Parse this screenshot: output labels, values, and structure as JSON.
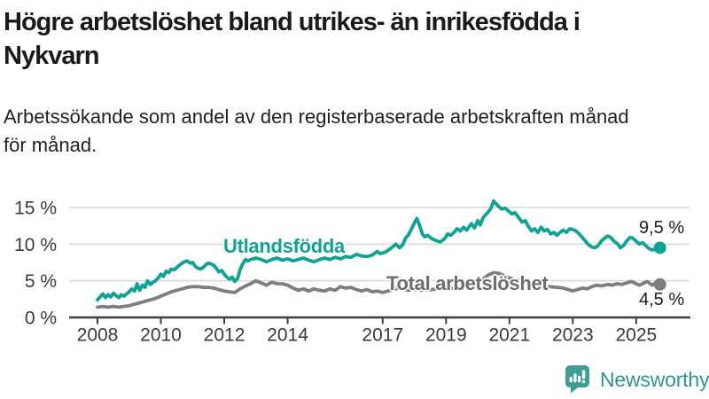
{
  "header": {
    "title": "Högre arbetslöshet bland utrikes- än inrikesfödda i\nNykvarn",
    "subtitle": "Arbetssökande som andel av den registerbaserade arbetskraften månad\nför månad."
  },
  "theme": {
    "background": "#ffffff",
    "accent_teal": "#0ea394",
    "line_gray": "#7e7e82",
    "label_gray": "#6c6c71",
    "title_color": "#1a1a1a",
    "subtitle_color": "#212121",
    "tick_color": "#3a3a3a",
    "grid_color": "#d8d8d8",
    "axis_color": "#3f3f3f",
    "value_label_color": "#1f1f1f",
    "logo_teal": "#3f9d96",
    "wordmark_teal": "#2f968f"
  },
  "chart_data": {
    "type": "line",
    "title": "Högre arbetslöshet bland utrikes- än inrikesfödda i Nykvarn",
    "subtitle": "Arbetssökande som andel av den registerbaserade arbetskraften månad för månad.",
    "unit": "%",
    "grid": true,
    "legend_position": "inline-labels",
    "x_range": [
      2007.9,
      2026.0
    ],
    "ylim": [
      0,
      16.5
    ],
    "x_axis": {
      "ticks": [
        {
          "year": 2008,
          "label": "2008"
        },
        {
          "year": 2010,
          "label": "2010"
        },
        {
          "year": 2012,
          "label": "2012"
        },
        {
          "year": 2014,
          "label": "2014"
        },
        {
          "year": 2017,
          "label": "2017"
        },
        {
          "year": 2019,
          "label": "2019"
        },
        {
          "year": 2021,
          "label": "2021"
        },
        {
          "year": 2023,
          "label": "2023"
        },
        {
          "year": 2025,
          "label": "2025"
        }
      ]
    },
    "y_axis": {
      "ticks": [
        {
          "value": 0,
          "label": "0 %"
        },
        {
          "value": 5,
          "label": "5 %"
        },
        {
          "value": 10,
          "label": "10 %"
        },
        {
          "value": 15,
          "label": "15 %"
        }
      ]
    },
    "series": [
      {
        "name": "Utlandsfödda",
        "color": "#0ea394",
        "end_value": 9.5,
        "end_label": "9,5 %",
        "points": [
          [
            2008,
            2.4
          ],
          [
            2008.08,
            2.8
          ],
          [
            2008.17,
            3.2
          ],
          [
            2008.25,
            2.7
          ],
          [
            2008.33,
            3.1
          ],
          [
            2008.42,
            2.8
          ],
          [
            2008.5,
            3.3
          ],
          [
            2008.58,
            3
          ],
          [
            2008.67,
            2.7
          ],
          [
            2008.75,
            3.1
          ],
          [
            2008.83,
            2.9
          ],
          [
            2008.92,
            3.2
          ],
          [
            2009,
            3.5
          ],
          [
            2009.08,
            3.9
          ],
          [
            2009.17,
            3.6
          ],
          [
            2009.25,
            4.6
          ],
          [
            2009.33,
            3.7
          ],
          [
            2009.42,
            4.4
          ],
          [
            2009.5,
            4.1
          ],
          [
            2009.58,
            5
          ],
          [
            2009.67,
            4.5
          ],
          [
            2009.75,
            4.8
          ],
          [
            2009.83,
            5
          ],
          [
            2009.92,
            5.4
          ],
          [
            2010,
            5.9
          ],
          [
            2010.08,
            5.6
          ],
          [
            2010.17,
            6.3
          ],
          [
            2010.25,
            6.1
          ],
          [
            2010.33,
            6.6
          ],
          [
            2010.42,
            6.5
          ],
          [
            2010.5,
            6.8
          ],
          [
            2010.58,
            7.1
          ],
          [
            2010.67,
            7.4
          ],
          [
            2010.75,
            7.6
          ],
          [
            2010.83,
            7.7
          ],
          [
            2010.92,
            7.4
          ],
          [
            2011,
            7.5
          ],
          [
            2011.08,
            7
          ],
          [
            2011.17,
            6.7
          ],
          [
            2011.25,
            6.6
          ],
          [
            2011.33,
            6.8
          ],
          [
            2011.42,
            7.2
          ],
          [
            2011.5,
            7.4
          ],
          [
            2011.58,
            7.3
          ],
          [
            2011.67,
            7.1
          ],
          [
            2011.75,
            6.7
          ],
          [
            2011.83,
            6.2
          ],
          [
            2011.92,
            6.4
          ],
          [
            2012,
            5.9
          ],
          [
            2012.08,
            5.5
          ],
          [
            2012.17,
            5.2
          ],
          [
            2012.25,
            5.5
          ],
          [
            2012.33,
            4.9
          ],
          [
            2012.42,
            5.3
          ],
          [
            2012.5,
            6.5
          ],
          [
            2012.58,
            7.3
          ],
          [
            2012.67,
            7.9
          ],
          [
            2012.75,
            7.7
          ],
          [
            2012.83,
            7.9
          ],
          [
            2012.92,
            8
          ],
          [
            2013,
            8.1
          ],
          [
            2013.17,
            7.9
          ],
          [
            2013.33,
            7.6
          ],
          [
            2013.5,
            7.9
          ],
          [
            2013.67,
            8.1
          ],
          [
            2013.83,
            7.8
          ],
          [
            2014,
            8
          ],
          [
            2014.17,
            7.7
          ],
          [
            2014.33,
            7.9
          ],
          [
            2014.5,
            8.1
          ],
          [
            2014.67,
            7.8
          ],
          [
            2014.83,
            7.6
          ],
          [
            2015,
            7.9
          ],
          [
            2015.17,
            8.1
          ],
          [
            2015.33,
            7.9
          ],
          [
            2015.5,
            8.2
          ],
          [
            2015.67,
            8
          ],
          [
            2015.83,
            8.3
          ],
          [
            2016,
            8.2
          ],
          [
            2016.17,
            8.6
          ],
          [
            2016.33,
            8.4
          ],
          [
            2016.5,
            8.3
          ],
          [
            2016.67,
            8.5
          ],
          [
            2016.83,
            9
          ],
          [
            2016.92,
            8.7
          ],
          [
            2017.08,
            8.9
          ],
          [
            2017.25,
            9.4
          ],
          [
            2017.42,
            10
          ],
          [
            2017.53,
            9.5
          ],
          [
            2017.63,
            9.9
          ],
          [
            2017.72,
            10.8
          ],
          [
            2017.82,
            11.3
          ],
          [
            2018,
            12.9
          ],
          [
            2018.08,
            13.5
          ],
          [
            2018.17,
            12.5
          ],
          [
            2018.25,
            11.4
          ],
          [
            2018.33,
            11
          ],
          [
            2018.42,
            11.2
          ],
          [
            2018.53,
            10.8
          ],
          [
            2018.67,
            10.5
          ],
          [
            2018.82,
            10.3
          ],
          [
            2018.95,
            10.7
          ],
          [
            2019.05,
            11.4
          ],
          [
            2019.15,
            11.2
          ],
          [
            2019.25,
            11.6
          ],
          [
            2019.35,
            12.1
          ],
          [
            2019.45,
            11.8
          ],
          [
            2019.55,
            12.3
          ],
          [
            2019.65,
            11.9
          ],
          [
            2019.8,
            12.8
          ],
          [
            2019.9,
            12.2
          ],
          [
            2020,
            13.2
          ],
          [
            2020.08,
            12.6
          ],
          [
            2020.17,
            13.6
          ],
          [
            2020.25,
            14
          ],
          [
            2020.33,
            14.4
          ],
          [
            2020.42,
            14.9
          ],
          [
            2020.5,
            15.9
          ],
          [
            2020.58,
            15.5
          ],
          [
            2020.67,
            15.1
          ],
          [
            2020.75,
            14.8
          ],
          [
            2020.87,
            14.9
          ],
          [
            2021,
            14.4
          ],
          [
            2021.08,
            14.1
          ],
          [
            2021.17,
            14.3
          ],
          [
            2021.3,
            13.6
          ],
          [
            2021.4,
            13
          ],
          [
            2021.5,
            13.2
          ],
          [
            2021.6,
            12.4
          ],
          [
            2021.7,
            11.8
          ],
          [
            2021.8,
            12.1
          ],
          [
            2021.9,
            11.6
          ],
          [
            2022,
            12.3
          ],
          [
            2022.1,
            11.8
          ],
          [
            2022.2,
            12
          ],
          [
            2022.3,
            11.4
          ],
          [
            2022.4,
            11.6
          ],
          [
            2022.5,
            11.2
          ],
          [
            2022.6,
            11.6
          ],
          [
            2022.7,
            11.9
          ],
          [
            2022.8,
            11.6
          ],
          [
            2022.9,
            12.1
          ],
          [
            2023,
            12
          ],
          [
            2023.1,
            11.8
          ],
          [
            2023.2,
            11.4
          ],
          [
            2023.3,
            10.9
          ],
          [
            2023.4,
            10.4
          ],
          [
            2023.5,
            9.9
          ],
          [
            2023.6,
            9.6
          ],
          [
            2023.7,
            9.5
          ],
          [
            2023.8,
            9.8
          ],
          [
            2023.9,
            10.4
          ],
          [
            2024,
            10.8
          ],
          [
            2024.1,
            11.1
          ],
          [
            2024.2,
            10.9
          ],
          [
            2024.3,
            10.4
          ],
          [
            2024.42,
            10
          ],
          [
            2024.5,
            9.5
          ],
          [
            2024.6,
            9.8
          ],
          [
            2024.7,
            10.4
          ],
          [
            2024.8,
            10.9
          ],
          [
            2024.9,
            10.8
          ],
          [
            2025,
            10.4
          ],
          [
            2025.1,
            10
          ],
          [
            2025.2,
            10.2
          ],
          [
            2025.3,
            9.8
          ],
          [
            2025.4,
            9.4
          ],
          [
            2025.5,
            9.2
          ],
          [
            2025.58,
            9.3
          ],
          [
            2025.65,
            9.5
          ],
          [
            2025.7,
            9.2
          ],
          [
            2025.75,
            9.5
          ]
        ]
      },
      {
        "name": "Total arbetslöshet",
        "color": "#7e7e82",
        "end_value": 4.5,
        "end_label": "4,5 %",
        "points": [
          [
            2008,
            1.4
          ],
          [
            2008.17,
            1.5
          ],
          [
            2008.33,
            1.4
          ],
          [
            2008.5,
            1.5
          ],
          [
            2008.67,
            1.4
          ],
          [
            2008.83,
            1.5
          ],
          [
            2009,
            1.6
          ],
          [
            2009.17,
            1.8
          ],
          [
            2009.33,
            2
          ],
          [
            2009.5,
            2.2
          ],
          [
            2009.67,
            2.4
          ],
          [
            2009.83,
            2.6
          ],
          [
            2010,
            2.9
          ],
          [
            2010.17,
            3.2
          ],
          [
            2010.33,
            3.5
          ],
          [
            2010.5,
            3.7
          ],
          [
            2010.67,
            3.9
          ],
          [
            2010.83,
            4.1
          ],
          [
            2011,
            4.2
          ],
          [
            2011.17,
            4.2
          ],
          [
            2011.33,
            4.1
          ],
          [
            2011.5,
            4.1
          ],
          [
            2011.67,
            4
          ],
          [
            2011.83,
            3.8
          ],
          [
            2012,
            3.6
          ],
          [
            2012.17,
            3.5
          ],
          [
            2012.33,
            3.4
          ],
          [
            2012.5,
            3.9
          ],
          [
            2012.67,
            4.3
          ],
          [
            2012.83,
            4.6
          ],
          [
            2013,
            5
          ],
          [
            2013.17,
            4.7
          ],
          [
            2013.33,
            4.4
          ],
          [
            2013.5,
            4.8
          ],
          [
            2013.67,
            4.6
          ],
          [
            2013.83,
            4.6
          ],
          [
            2014,
            4.4
          ],
          [
            2014.17,
            4
          ],
          [
            2014.33,
            3.7
          ],
          [
            2014.5,
            3.9
          ],
          [
            2014.67,
            3.6
          ],
          [
            2014.83,
            3.9
          ],
          [
            2015,
            3.7
          ],
          [
            2015.17,
            3.6
          ],
          [
            2015.33,
            3.9
          ],
          [
            2015.5,
            3.7
          ],
          [
            2015.67,
            4.2
          ],
          [
            2015.83,
            4
          ],
          [
            2016,
            4.1
          ],
          [
            2016.17,
            3.8
          ],
          [
            2016.33,
            3.6
          ],
          [
            2016.5,
            3.8
          ],
          [
            2016.67,
            3.5
          ],
          [
            2016.83,
            3.6
          ],
          [
            2017,
            3.4
          ],
          [
            2017.17,
            3.6
          ],
          [
            2017.33,
            3.8
          ],
          [
            2017.5,
            4
          ],
          [
            2017.67,
            3.8
          ],
          [
            2017.83,
            3.7
          ],
          [
            2018,
            3.8
          ],
          [
            2018.25,
            3.7
          ],
          [
            2018.5,
            3.8
          ],
          [
            2018.75,
            3.9
          ],
          [
            2019,
            3.9
          ],
          [
            2019.25,
            4
          ],
          [
            2019.5,
            4.1
          ],
          [
            2019.75,
            4.3
          ],
          [
            2020,
            4.6
          ],
          [
            2020.17,
            5.2
          ],
          [
            2020.33,
            5.8
          ],
          [
            2020.5,
            6.1
          ],
          [
            2020.67,
            6
          ],
          [
            2020.83,
            5.7
          ],
          [
            2021,
            5.4
          ],
          [
            2021.25,
            5.1
          ],
          [
            2021.5,
            4.8
          ],
          [
            2021.75,
            4.6
          ],
          [
            2022,
            4.4
          ],
          [
            2022.25,
            4.2
          ],
          [
            2022.5,
            4.1
          ],
          [
            2022.7,
            4
          ],
          [
            2022.85,
            3.8
          ],
          [
            2023,
            3.6
          ],
          [
            2023.15,
            3.8
          ],
          [
            2023.3,
            4
          ],
          [
            2023.45,
            3.9
          ],
          [
            2023.6,
            4.2
          ],
          [
            2023.75,
            4.4
          ],
          [
            2023.9,
            4.3
          ],
          [
            2024.1,
            4.5
          ],
          [
            2024.25,
            4.4
          ],
          [
            2024.4,
            4.6
          ],
          [
            2024.55,
            4.5
          ],
          [
            2024.7,
            4.7
          ],
          [
            2024.85,
            4.9
          ],
          [
            2025,
            4.6
          ],
          [
            2025.1,
            4.4
          ],
          [
            2025.25,
            4.7
          ],
          [
            2025.35,
            4.9
          ],
          [
            2025.5,
            4.4
          ],
          [
            2025.65,
            4.8
          ],
          [
            2025.75,
            4.5
          ]
        ]
      }
    ]
  },
  "footer": {
    "brand": "Newsworthy"
  }
}
